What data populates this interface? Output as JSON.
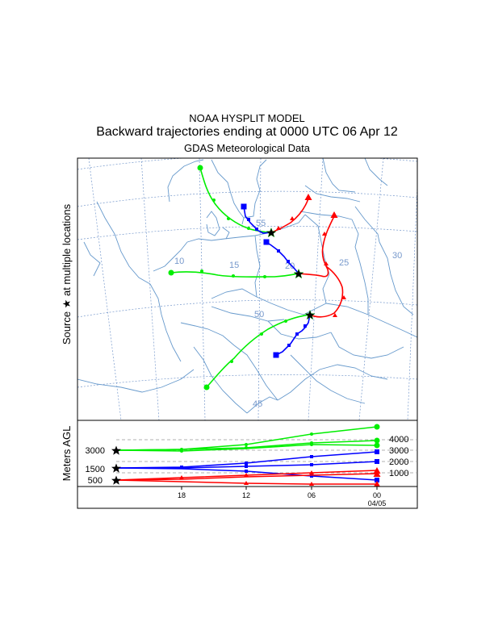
{
  "title": {
    "line1": "NOAA HYSPLIT MODEL",
    "line2": "Backward trajectories ending at 0000 UTC 06 Apr 12",
    "line3": "GDAS Meteorological Data"
  },
  "side_label": {
    "source_text": "Source",
    "star_glyph": "★",
    "suffix_text": "at multiple locations"
  },
  "map": {
    "graticule_labels": {
      "lon_10": "10",
      "lon_15": "15",
      "lon_20": "20",
      "lon_25": "25",
      "lon_30": "30",
      "lat_55": "55",
      "lat_50": "50",
      "lat_45": "45"
    },
    "trajectory_colors": {
      "low": "#ff0000",
      "mid": "#0000ff",
      "high": "#00ee00"
    }
  },
  "height_panel": {
    "ylabel": "Meters AGL",
    "left_ticks": [
      "3000",
      "1500",
      "500"
    ],
    "right_ticks": [
      "4000",
      "3000",
      "2000",
      "1000"
    ],
    "x_ticks": [
      "18",
      "12",
      "06",
      "00"
    ],
    "date_label": "04/05"
  },
  "colors": {
    "graticule": "#7799cc",
    "border": "#6699cc",
    "frame": "#000000",
    "dashed_grid": "#999999"
  }
}
